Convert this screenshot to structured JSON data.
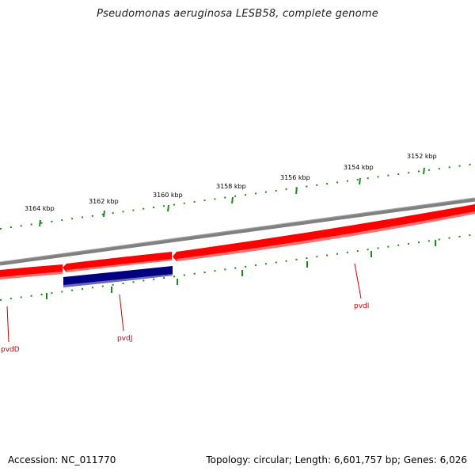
{
  "title": "Pseudomonas aeruginosa LESB58, complete genome",
  "accession": "Accession: NC_011770",
  "summary": "Topology: circular; Length: 6,601,757 bp; Genes: 6,026",
  "scale_labels": [
    "3164 kbp",
    "3162 kbp",
    "3160 kbp",
    "3158 kbp",
    "3156 kbp",
    "3154 kbp",
    "3152 kbp"
  ],
  "genes": [
    {
      "name": "pvdD",
      "strand": "forward-red",
      "color": "#ff0000"
    },
    {
      "name": "pvdJ",
      "strand": "reverse-blue",
      "color": "#000080"
    },
    {
      "name": "pvdI",
      "strand": "forward-red",
      "color": "#ff0000"
    }
  ],
  "colors": {
    "backbone": "#808080",
    "forward_gene": "#ff0000",
    "reverse_gene": "#000080",
    "ticks": "#1a8a1a",
    "gene_label": "#cc0000"
  }
}
